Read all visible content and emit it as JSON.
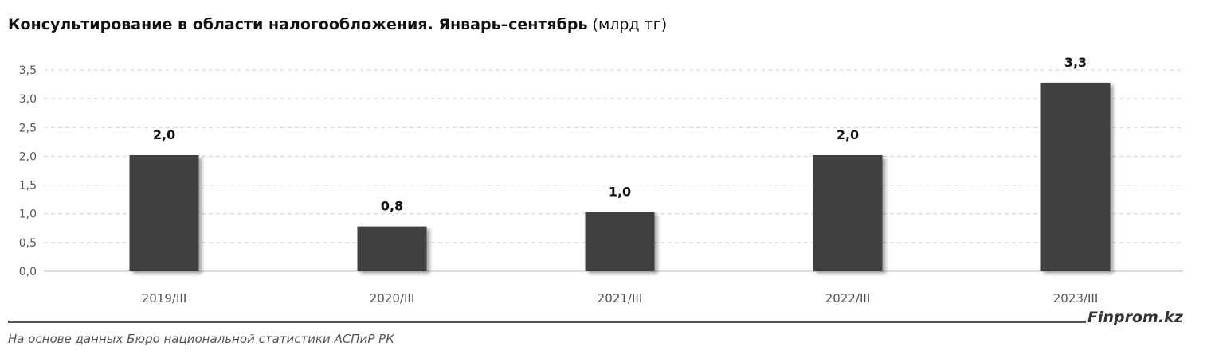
{
  "chart_data": {
    "type": "bar",
    "title": "Консультирование в области налогообложения. Январь–сентябрь",
    "unit": "(млрд тг)",
    "categories": [
      "2019/III",
      "2020/III",
      "2021/III",
      "2022/III",
      "2023/III"
    ],
    "values": [
      2.02,
      0.78,
      1.03,
      2.02,
      3.28
    ],
    "data_labels": [
      "2,0",
      "0,8",
      "1,0",
      "2,0",
      "3,3"
    ],
    "ylim": [
      0,
      3.5
    ],
    "yticks": [
      "0,0",
      "0,5",
      "1,0",
      "1,5",
      "2,0",
      "2,5",
      "3,0",
      "3,5"
    ],
    "grid": true,
    "bar_color": "#404040"
  },
  "footer": {
    "brand": "Finprom.kz",
    "source": "На основе данных Бюро национальной статистики АСПиР РК"
  }
}
